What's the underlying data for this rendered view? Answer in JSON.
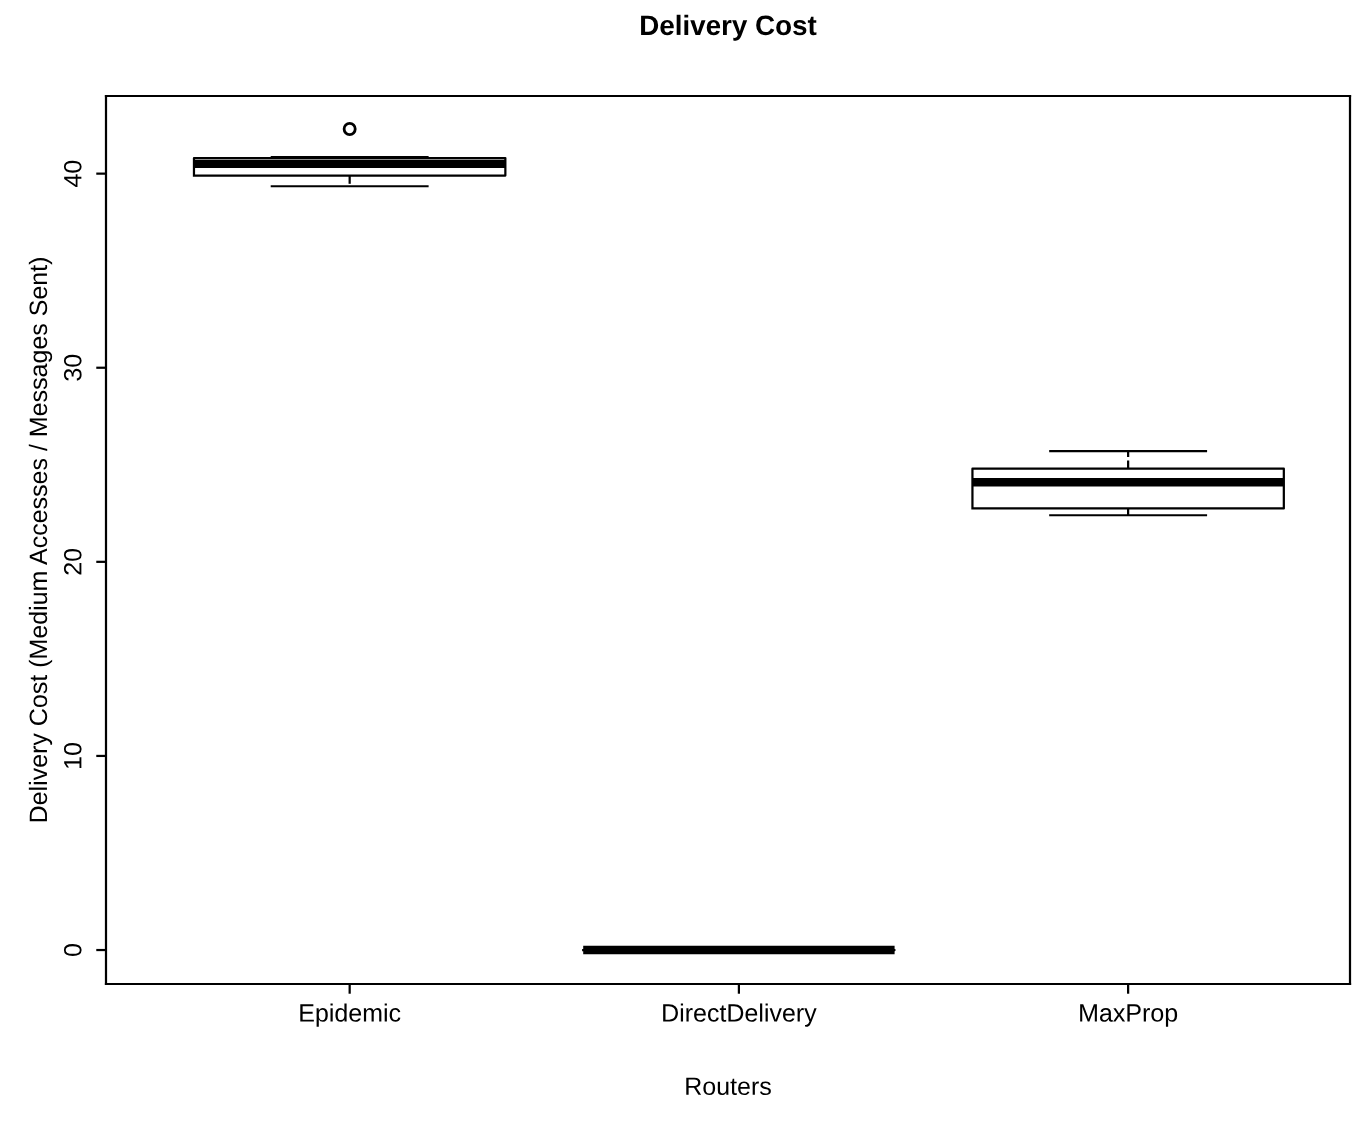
{
  "chart_data": {
    "type": "box",
    "title": "Delivery Cost",
    "xlabel": "Routers",
    "ylabel": "Delivery Cost (Medium Accesses / Messages Sent)",
    "categories": [
      "Epidemic",
      "DirectDelivery",
      "MaxProp"
    ],
    "boxes": [
      {
        "low": 39.35,
        "q1": 39.9,
        "median": 40.5,
        "q3": 40.8,
        "high": 40.85,
        "outliers": [
          42.3
        ]
      },
      {
        "low": 0,
        "q1": 0,
        "median": 0,
        "q3": 0,
        "high": 0
      },
      {
        "low": 22.4,
        "q1": 22.75,
        "median": 24.1,
        "q3": 24.8,
        "high": 25.7
      }
    ],
    "ylim": [
      -1.75,
      44
    ],
    "yticks": [
      0,
      10,
      20,
      30,
      40
    ],
    "grid": false
  }
}
